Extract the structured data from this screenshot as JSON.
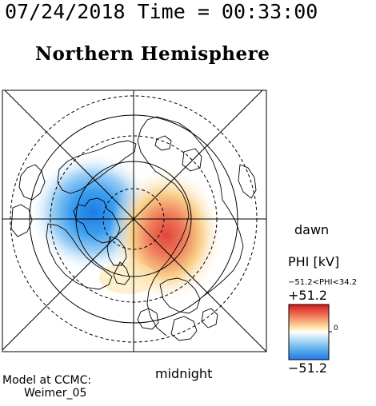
{
  "header": {
    "timestamp": "07/24/2018 Time = 00:33:00",
    "title": "Northern Hemisphere"
  },
  "map": {
    "projection": "polar",
    "hemisphere": "northern",
    "field": "PHI",
    "labels": {
      "dawn": "dawn",
      "midnight": "midnight"
    },
    "potential_cells": [
      {
        "polarity": "negative",
        "color": "#1e88e8",
        "location": "dusk / pre-noon side"
      },
      {
        "polarity": "positive",
        "color": "#e8463c",
        "location": "dawn / post-midnight side"
      }
    ]
  },
  "colorbar": {
    "label": "PHI [kV]",
    "range_text": "−51.2<PHI<34.2",
    "max_label": "+51.2",
    "mid_label": "0",
    "min_label": "−51.2",
    "colors": [
      "#d73027",
      "#fc8d59",
      "#fee090",
      "#ffffff",
      "#e0f3f8",
      "#91bfdb",
      "#1e88e8"
    ]
  },
  "footer": {
    "model_line1": "Model at CCMC:",
    "model_line2": "Weimer_05"
  }
}
